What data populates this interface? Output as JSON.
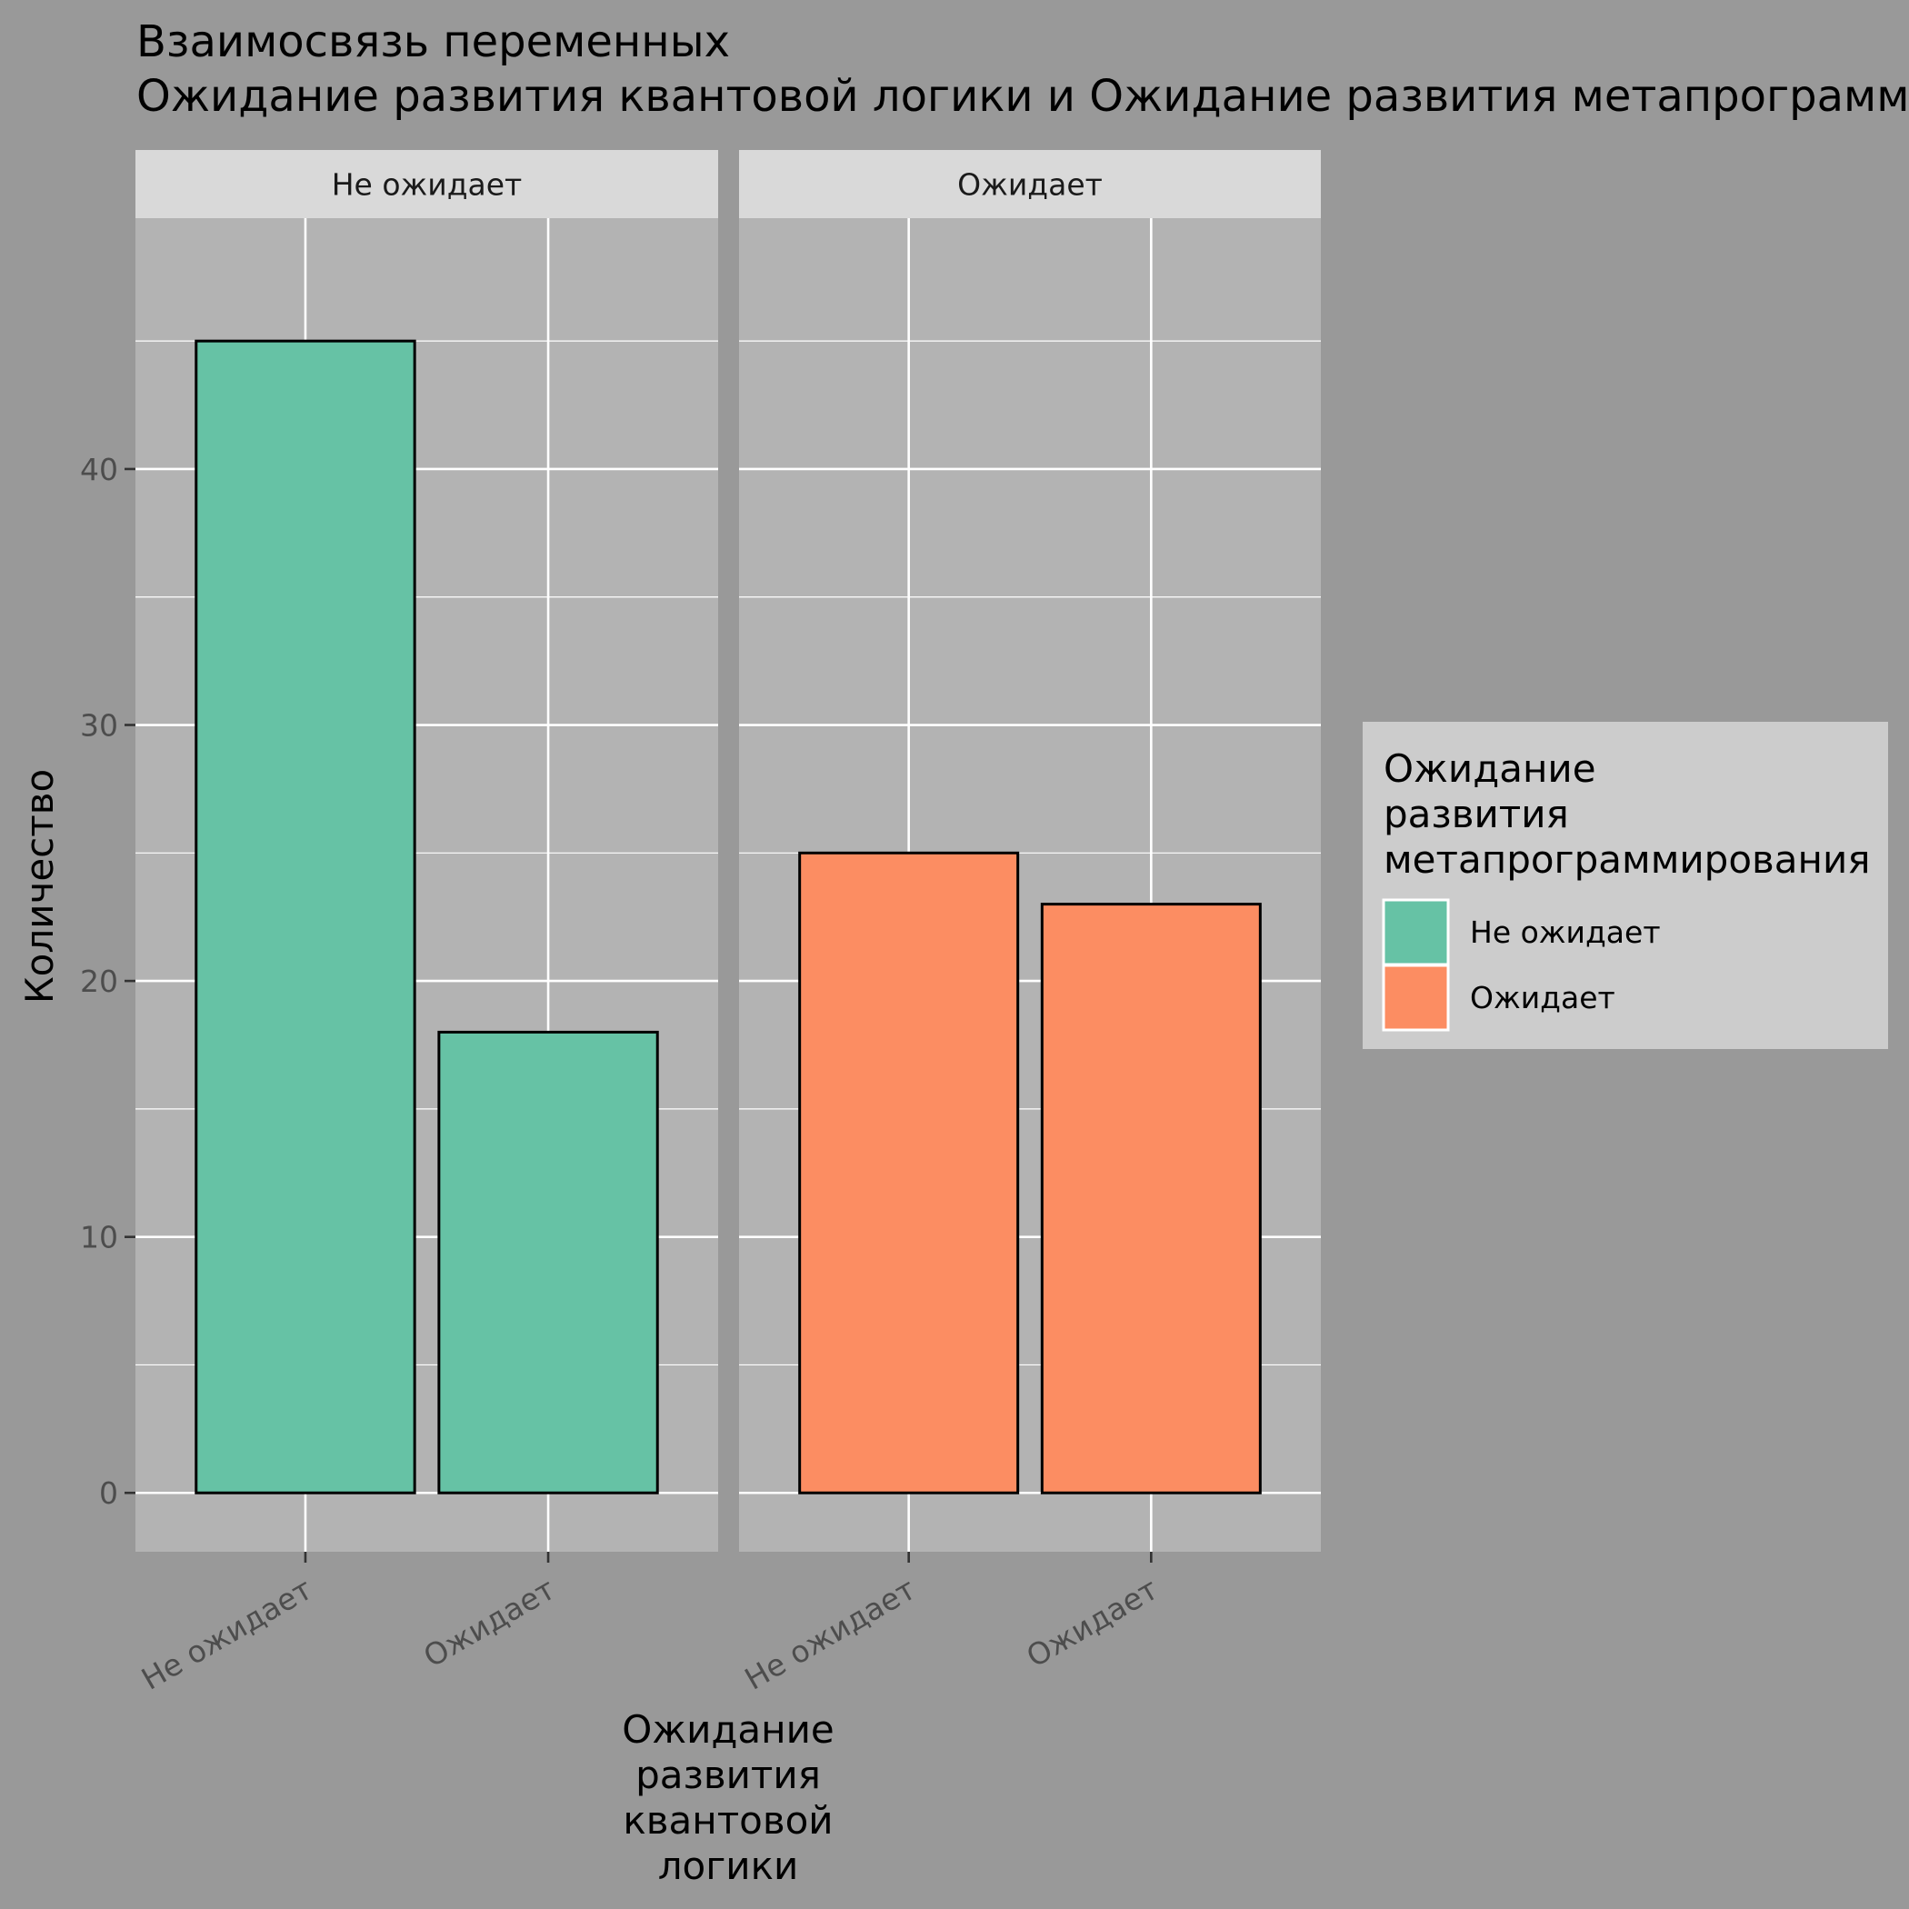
{
  "chart_data": {
    "type": "bar",
    "title_lines": [
      "Взаимосвязь переменных",
      " Ожидание развития квантовой логики и Ожидание развития метапрограммирования"
    ],
    "xlabel_lines": [
      "Ожидание",
      "развития",
      "квантовой",
      "логики"
    ],
    "ylabel": "Количество",
    "ylim": [
      -2.3,
      49.8
    ],
    "yticks": [
      0,
      10,
      20,
      30,
      40
    ],
    "grid": true,
    "categories": [
      "Не ожидает",
      "Ожидает"
    ],
    "facets": [
      {
        "label": "Не ожидает",
        "values": [
          45,
          18
        ],
        "fill_series": "Не ожидает"
      },
      {
        "label": "Ожидает",
        "values": [
          25,
          23
        ],
        "fill_series": "Ожидает"
      }
    ],
    "legend": {
      "title_lines": [
        "Ожидание",
        "развития",
        "метапрограммирования"
      ],
      "position": "right",
      "entries": [
        {
          "name": "Не ожидает",
          "color": "#66C2A5"
        },
        {
          "name": "Ожидает",
          "color": "#FC8D62"
        }
      ]
    },
    "colors": {
      "page_bg": "#999999",
      "panel_bg": "#B3B3B3",
      "strip_bg": "#D9D9D9",
      "legend_bg": "#CCCCCC",
      "grid": "#FFFFFF"
    }
  }
}
